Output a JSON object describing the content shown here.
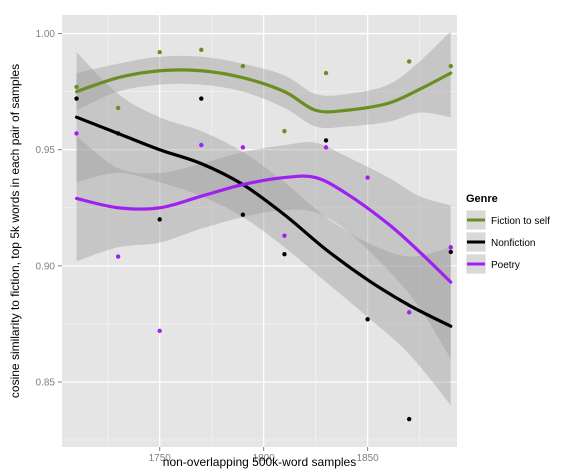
{
  "chart_data": {
    "type": "scatter",
    "xlabel": "non-overlapping 500k-word samples",
    "ylabel": "cosine similarity to fiction, top 5k words in each pair of samples",
    "xlim": [
      1703,
      1893
    ],
    "ylim": [
      0.822,
      1.008
    ],
    "x_ticks": [
      1750,
      1800,
      1850
    ],
    "y_ticks": [
      0.85,
      0.9,
      0.95,
      1.0
    ],
    "y_tick_labels": [
      "0.85",
      "0.90",
      "0.95",
      "1.00"
    ],
    "grid": true,
    "legend_position": "right",
    "legend_title": "Genre",
    "series": [
      {
        "name": "Fiction to self",
        "color": "#6b8e23",
        "points": [
          [
            1710,
            0.977
          ],
          [
            1730,
            0.968
          ],
          [
            1750,
            0.992
          ],
          [
            1770,
            0.993
          ],
          [
            1790,
            0.986
          ],
          [
            1810,
            0.958
          ],
          [
            1830,
            0.983
          ],
          [
            1870,
            0.988
          ],
          [
            1890,
            0.986
          ]
        ],
        "smooth": [
          [
            1710,
            0.975
          ],
          [
            1730,
            0.981
          ],
          [
            1750,
            0.984
          ],
          [
            1770,
            0.984
          ],
          [
            1790,
            0.981
          ],
          [
            1810,
            0.975
          ],
          [
            1825,
            0.967
          ],
          [
            1840,
            0.967
          ],
          [
            1860,
            0.97
          ],
          [
            1875,
            0.976
          ],
          [
            1890,
            0.983
          ]
        ],
        "band": [
          [
            1710,
            0.967,
            0.983
          ],
          [
            1730,
            0.975,
            0.987
          ],
          [
            1750,
            0.978,
            0.99
          ],
          [
            1770,
            0.978,
            0.99
          ],
          [
            1790,
            0.975,
            0.987
          ],
          [
            1810,
            0.968,
            0.982
          ],
          [
            1825,
            0.96,
            0.974
          ],
          [
            1840,
            0.96,
            0.974
          ],
          [
            1860,
            0.962,
            0.978
          ],
          [
            1875,
            0.966,
            0.988
          ],
          [
            1890,
            0.964,
            1.001
          ]
        ]
      },
      {
        "name": "Nonfiction",
        "color": "#000000",
        "points": [
          [
            1710,
            0.972
          ],
          [
            1730,
            0.957
          ],
          [
            1750,
            0.92
          ],
          [
            1770,
            0.972
          ],
          [
            1790,
            0.922
          ],
          [
            1810,
            0.905
          ],
          [
            1830,
            0.954
          ],
          [
            1850,
            0.877
          ],
          [
            1870,
            0.834
          ],
          [
            1890,
            0.906
          ]
        ],
        "smooth": [
          [
            1710,
            0.964
          ],
          [
            1730,
            0.957
          ],
          [
            1750,
            0.95
          ],
          [
            1770,
            0.944
          ],
          [
            1790,
            0.935
          ],
          [
            1810,
            0.922
          ],
          [
            1830,
            0.907
          ],
          [
            1850,
            0.894
          ],
          [
            1870,
            0.883
          ],
          [
            1890,
            0.874
          ]
        ],
        "band": [
          [
            1710,
            0.936,
            0.992
          ],
          [
            1730,
            0.94,
            0.974
          ],
          [
            1750,
            0.936,
            0.964
          ],
          [
            1770,
            0.93,
            0.958
          ],
          [
            1790,
            0.921,
            0.949
          ],
          [
            1810,
            0.908,
            0.936
          ],
          [
            1830,
            0.893,
            0.921
          ],
          [
            1850,
            0.878,
            0.91
          ],
          [
            1870,
            0.862,
            0.904
          ],
          [
            1890,
            0.84,
            0.908
          ]
        ]
      },
      {
        "name": "Poetry",
        "color": "#a020f0",
        "points": [
          [
            1710,
            0.957
          ],
          [
            1730,
            0.904
          ],
          [
            1750,
            0.872
          ],
          [
            1770,
            0.952
          ],
          [
            1790,
            0.951
          ],
          [
            1810,
            0.913
          ],
          [
            1830,
            0.951
          ],
          [
            1850,
            0.938
          ],
          [
            1870,
            0.88
          ],
          [
            1890,
            0.908
          ]
        ],
        "smooth": [
          [
            1710,
            0.929
          ],
          [
            1730,
            0.925
          ],
          [
            1750,
            0.925
          ],
          [
            1770,
            0.93
          ],
          [
            1790,
            0.935
          ],
          [
            1810,
            0.938
          ],
          [
            1825,
            0.938
          ],
          [
            1840,
            0.931
          ],
          [
            1860,
            0.918
          ],
          [
            1875,
            0.906
          ],
          [
            1890,
            0.893
          ]
        ],
        "band": [
          [
            1710,
            0.902,
            0.956
          ],
          [
            1730,
            0.908,
            0.942
          ],
          [
            1750,
            0.91,
            0.94
          ],
          [
            1770,
            0.916,
            0.944
          ],
          [
            1790,
            0.921,
            0.949
          ],
          [
            1810,
            0.924,
            0.952
          ],
          [
            1825,
            0.923,
            0.953
          ],
          [
            1840,
            0.915,
            0.947
          ],
          [
            1860,
            0.898,
            0.938
          ],
          [
            1875,
            0.882,
            0.93
          ],
          [
            1890,
            0.86,
            0.926
          ]
        ]
      }
    ]
  }
}
